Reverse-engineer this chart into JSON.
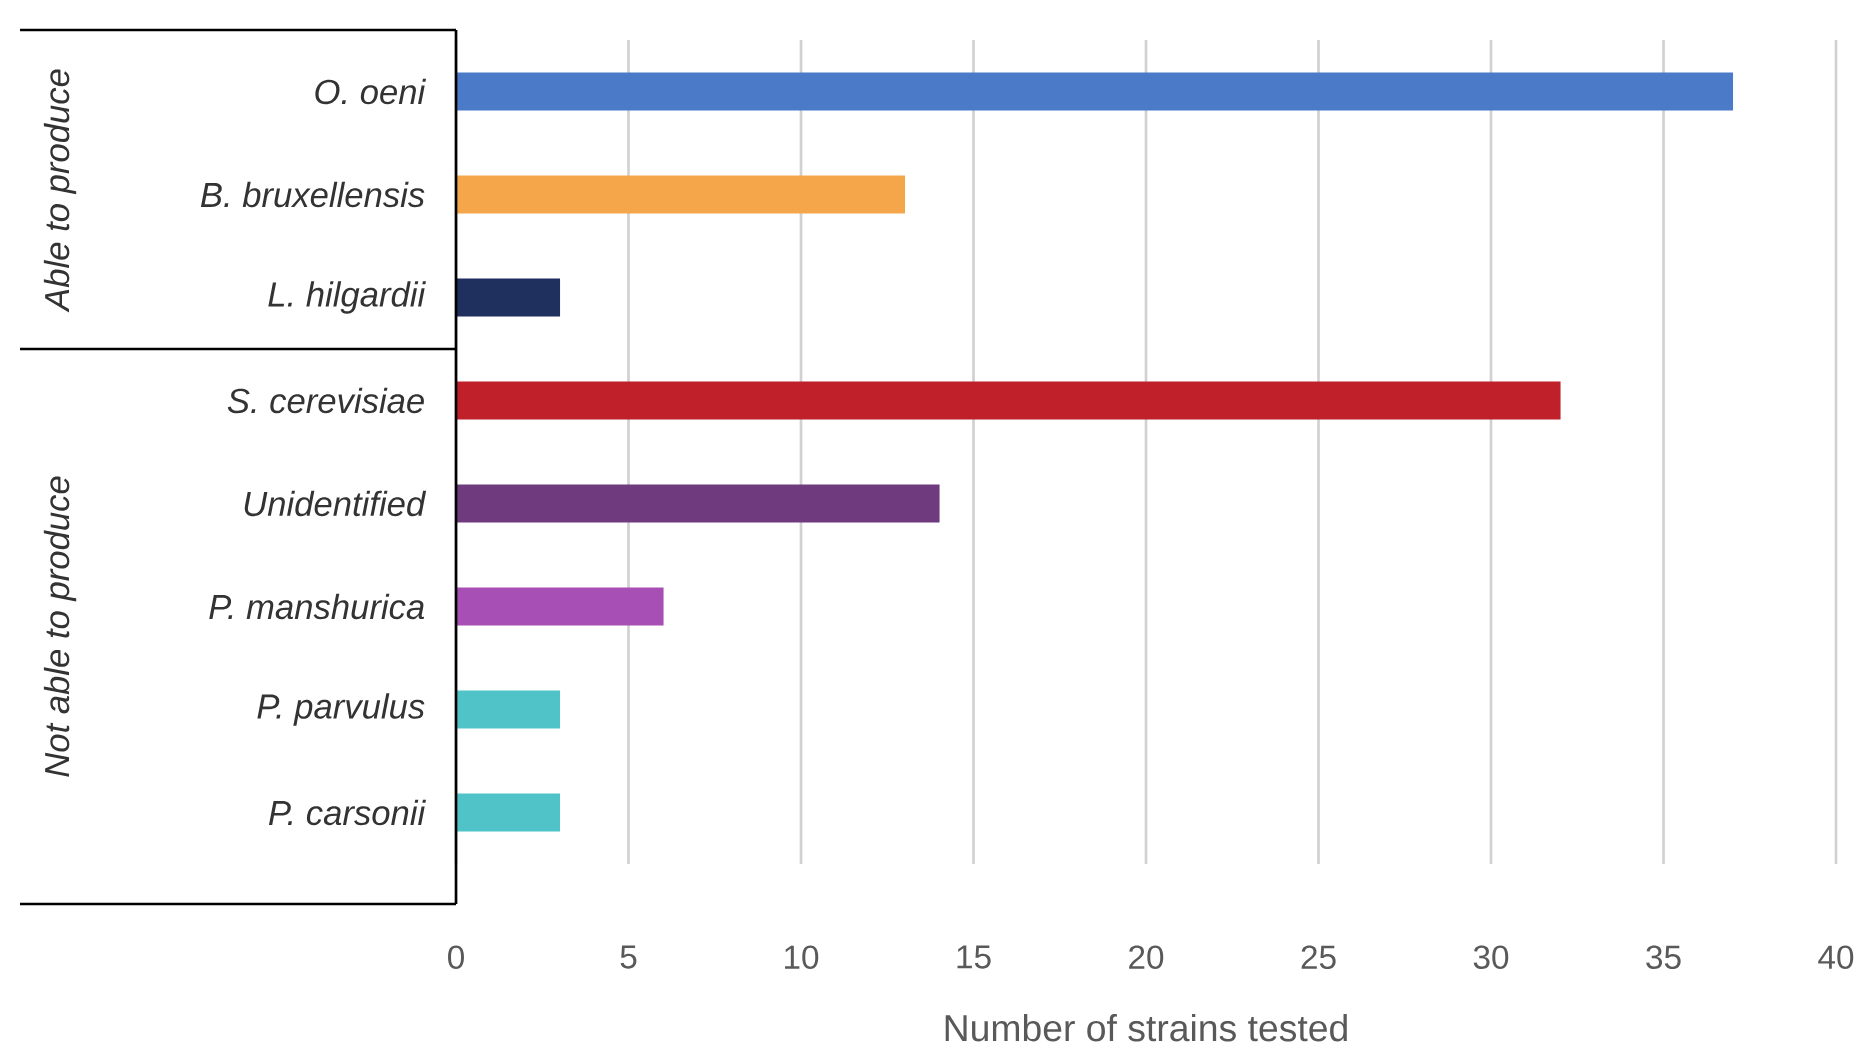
{
  "chart_data": {
    "type": "bar",
    "orientation": "horizontal",
    "xlabel": "Number of strains tested",
    "categories": [
      "O. oeni",
      "B. bruxellensis",
      "L. hilgardii",
      "S. cerevisiae",
      "Unidentified",
      "P. manshurica",
      "P. parvulus",
      "P. carsonii"
    ],
    "values": [
      37,
      13,
      3,
      32,
      14,
      6,
      3,
      3
    ],
    "colors": [
      "#4a7ac8",
      "#f5a54a",
      "#1f2f5e",
      "#c0202a",
      "#6f3a7e",
      "#a84fb5",
      "#4fc3c8",
      "#4fc3c8"
    ],
    "xlim": [
      0,
      40
    ],
    "xticks": [
      0,
      5,
      10,
      15,
      20,
      25,
      30,
      35,
      40
    ],
    "grid": "x",
    "annotations": [
      "Able to produce",
      "Not able to produce"
    ]
  }
}
